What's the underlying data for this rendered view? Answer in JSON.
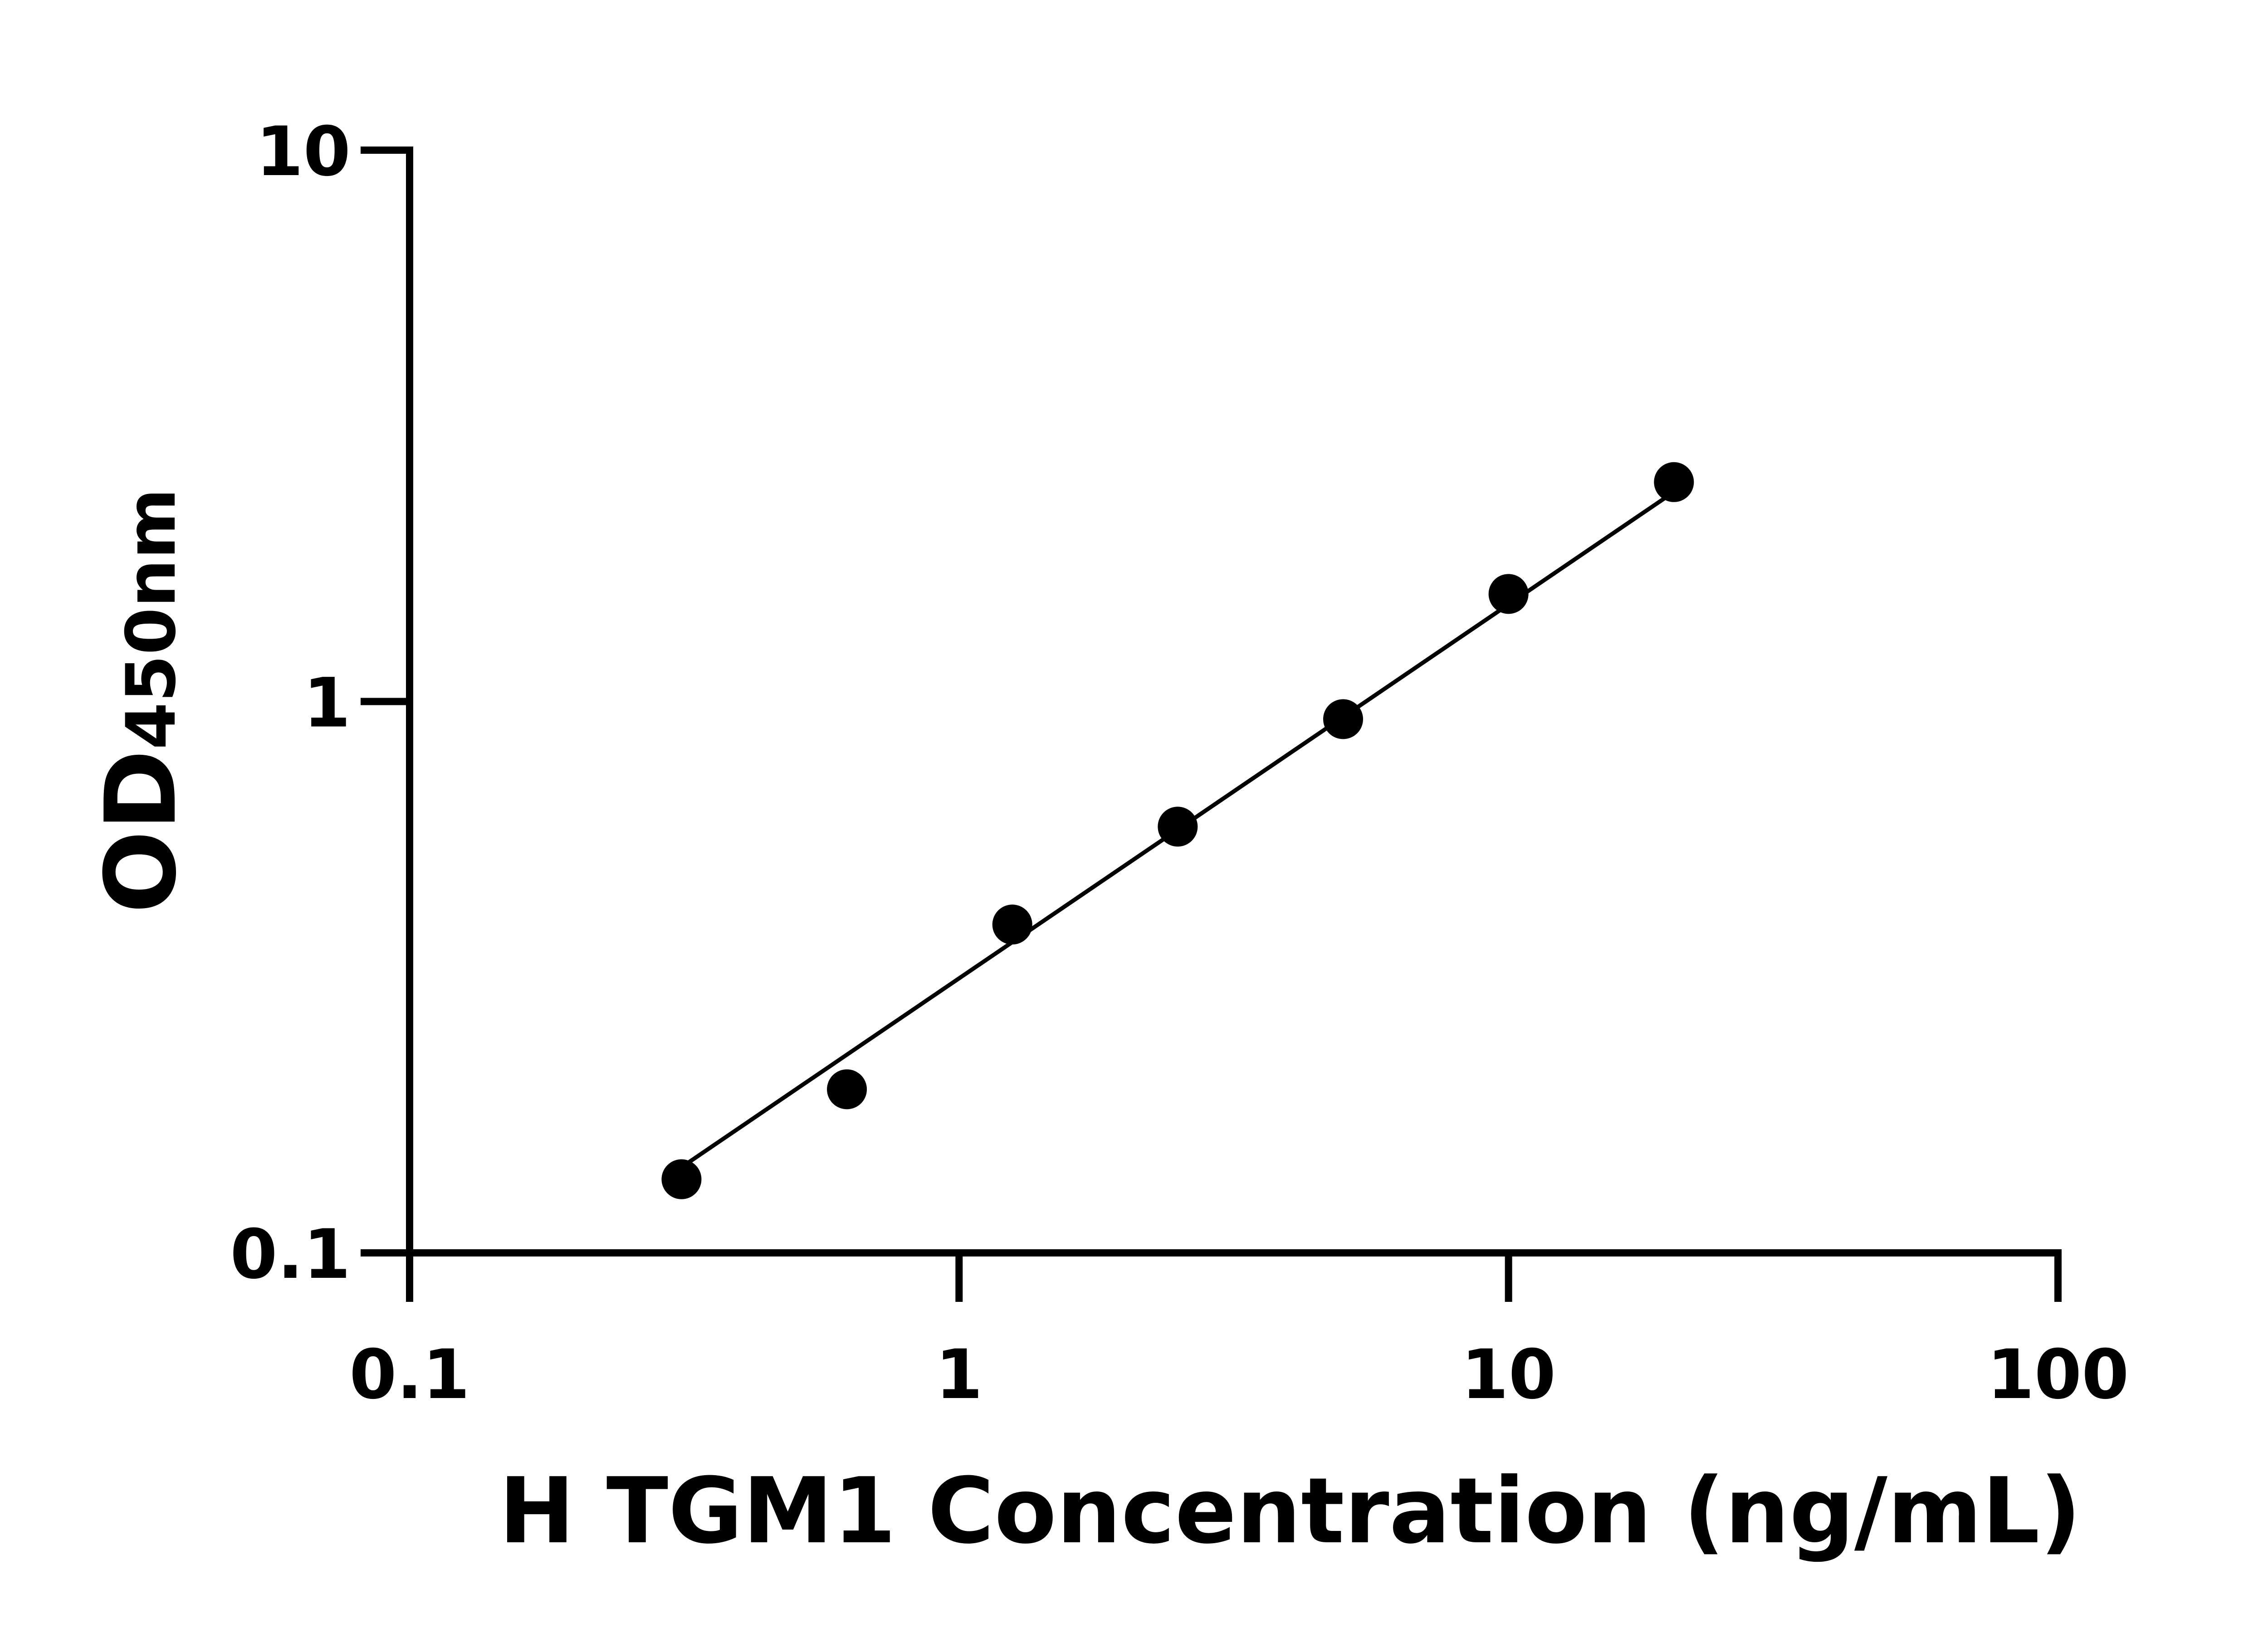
{
  "chart_data": {
    "type": "scatter",
    "x_label": "H TGM1 Concentration (ng/mL)",
    "y_label": [
      "OD",
      "450nm"
    ],
    "x": [
      0.3125,
      0.625,
      1.25,
      2.5,
      5,
      10,
      20
    ],
    "values": [
      0.136,
      0.198,
      0.394,
      0.593,
      0.929,
      1.567,
      2.5
    ],
    "color": "#000000",
    "fit_line": {
      "x": [
        0.3125,
        20
      ],
      "values": [
        0.143,
        2.4
      ]
    },
    "xscale": "log",
    "yscale": "log",
    "xlim": [
      0.1,
      100
    ],
    "ylim": [
      0.1,
      10
    ],
    "xticks": [
      0.1,
      1,
      10,
      100
    ],
    "yticks": [
      0.1,
      1,
      10
    ],
    "grid": false
  }
}
